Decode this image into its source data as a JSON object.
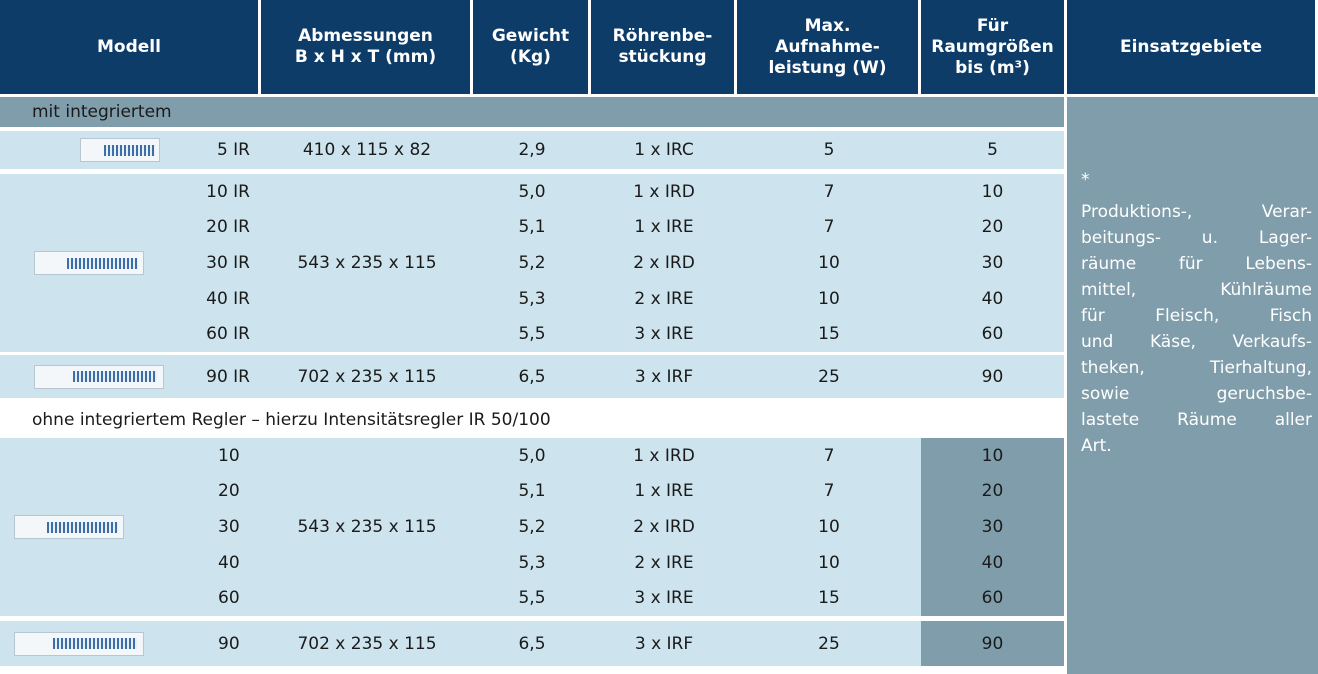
{
  "header": {
    "columns": [
      [
        "Modell"
      ],
      [
        "Abmessungen",
        "B x H x T (mm)"
      ],
      [
        "Gewicht",
        "(Kg)"
      ],
      [
        "Röhrenbe-",
        "stückung"
      ],
      [
        "Max.",
        "Aufnahme-",
        "leistung (W)"
      ],
      [
        "Für",
        "Raumgrößen",
        "bis  (m³)"
      ],
      [
        "Einsatzgebiete"
      ]
    ]
  },
  "sections": [
    {
      "title": "mit integriertem",
      "groups": [
        {
          "dimensions": "410 x 115 x 82",
          "rows": [
            [
              "5 IR",
              "2,9",
              "1 x IRC",
              "5",
              "5"
            ]
          ]
        },
        {
          "dimensions": "543 x 235 x 115",
          "rows": [
            [
              "10 IR",
              "5,0",
              "1 x IRD",
              "7",
              "10"
            ],
            [
              "20 IR",
              "5,1",
              "1 x IRE",
              "7",
              "20"
            ],
            [
              "30 IR",
              "5,2",
              "2 x IRD",
              "10",
              "30"
            ],
            [
              "40 IR",
              "5,3",
              "2 x IRE",
              "10",
              "40"
            ],
            [
              "60 IR",
              "5,5",
              "3 x IRE",
              "15",
              "60"
            ]
          ]
        },
        {
          "dimensions": "702 x 235 x 115",
          "rows": [
            [
              "90 IR",
              "6,5",
              "3 x IRF",
              "25",
              "90"
            ]
          ]
        }
      ]
    },
    {
      "title": "ohne integriertem Regler – hierzu Intensitätsregler IR 50/100",
      "groups": [
        {
          "dimensions": "543 x 235 x 115",
          "rows": [
            [
              "10",
              "5,0",
              "1 x IRD",
              "7",
              "10"
            ],
            [
              "20",
              "5,1",
              "1 x IRE",
              "7",
              "20"
            ],
            [
              "30",
              "5,2",
              "2 x IRD",
              "10",
              "30"
            ],
            [
              "40",
              "5,3",
              "2 x IRE",
              "10",
              "40"
            ],
            [
              "60",
              "5,5",
              "3 x IRE",
              "15",
              "60"
            ]
          ]
        },
        {
          "dimensions": "702 x 235 x 115",
          "rows": [
            [
              "90",
              "6,5",
              "3 x IRF",
              "25",
              "90"
            ]
          ]
        }
      ]
    }
  ],
  "notes": {
    "marker": "*",
    "lines": [
      "Produktions-, Verar-",
      "beitungs- u. Lager-",
      "räume für Lebens-",
      "mittel, Kühlräume",
      "für Fleisch, Fisch",
      "und Käse, Verkaufs-",
      "theken, Tierhaltung,",
      "sowie geruchsbe-",
      "lastete Räume aller",
      "Art."
    ]
  }
}
